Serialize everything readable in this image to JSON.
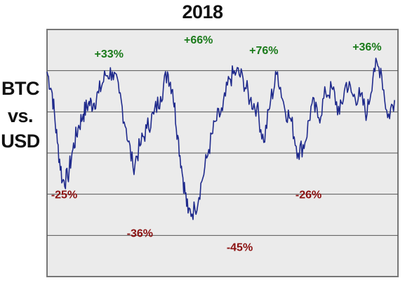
{
  "chart_data": {
    "type": "line",
    "title": "2018",
    "ylabel": [
      "BTC",
      "vs.",
      "USD"
    ],
    "xlabel": "",
    "grid": true,
    "colors": {
      "line": "#1f2a8c",
      "gain": "#1a7a1a",
      "loss": "#8b1010",
      "plot_background": "#ebebeb",
      "grid": "#555555",
      "frame": "#777777"
    },
    "x": [
      0,
      1.5,
      3,
      4.5,
      6,
      7.5,
      9,
      10.5,
      12,
      13.5,
      15,
      17,
      19,
      21,
      23,
      25,
      27,
      29,
      31,
      33,
      35,
      36.5,
      38,
      39.5,
      41,
      43,
      45,
      47,
      49,
      51,
      53,
      55,
      57,
      59,
      61,
      63,
      65,
      67,
      69,
      71,
      73,
      75,
      77,
      79,
      81,
      83,
      85,
      87,
      89,
      91,
      93,
      95,
      97,
      99,
      101
    ],
    "y": [
      58,
      52,
      38,
      27,
      28,
      36,
      42,
      46,
      49,
      49,
      52,
      57,
      58,
      52,
      42,
      31,
      37,
      42,
      46,
      51,
      58,
      53,
      40,
      28,
      18,
      19,
      27,
      36,
      44,
      47,
      56,
      58,
      56,
      50,
      48,
      38,
      50,
      58,
      48,
      44,
      35,
      38,
      49,
      45,
      52,
      53,
      46,
      55,
      51,
      51,
      46,
      59,
      59,
      45,
      50
    ],
    "ylim": [
      0,
      70
    ],
    "xlim": [
      0,
      102
    ],
    "annotations": [
      {
        "text": "-25%",
        "x": 5,
        "y": 25,
        "kind": "loss"
      },
      {
        "text": "+33%",
        "x": 18,
        "y": 62,
        "kind": "gain"
      },
      {
        "text": "-36%",
        "x": 27,
        "y": 14,
        "kind": "loss"
      },
      {
        "text": "+66%",
        "x": 44,
        "y": 66,
        "kind": "gain"
      },
      {
        "text": "-45%",
        "x": 56,
        "y": 10,
        "kind": "loss"
      },
      {
        "text": "+76%",
        "x": 63,
        "y": 63,
        "kind": "gain"
      },
      {
        "text": "-26%",
        "x": 76,
        "y": 25,
        "kind": "loss"
      },
      {
        "text": "+36%",
        "x": 93,
        "y": 64,
        "kind": "gain"
      }
    ]
  }
}
